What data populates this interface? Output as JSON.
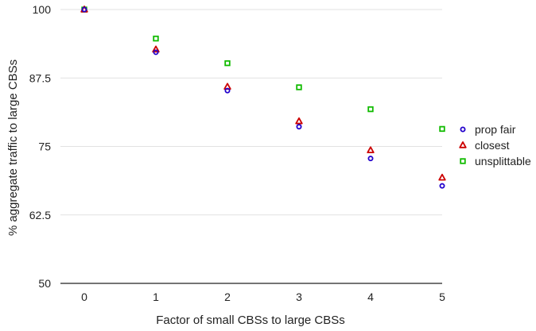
{
  "chart_data": {
    "type": "scatter",
    "xlabel": "Factor of small CBSs to large CBSs",
    "ylabel": "% aggregate traffic to large CBSs",
    "x": [
      0,
      1,
      2,
      3,
      4,
      5
    ],
    "x_ticks": [
      "0",
      "1",
      "2",
      "3",
      "4",
      "5"
    ],
    "y_ticks": [
      "50",
      "62.5",
      "75",
      "87.5",
      "100"
    ],
    "y_tick_values": [
      50,
      62.5,
      75,
      87.5,
      100
    ],
    "ylim": [
      50,
      100
    ],
    "xlim": [
      -0.35,
      5.0
    ],
    "grid": "horizontal",
    "legend_position": "right",
    "series": [
      {
        "name": "prop fair",
        "marker": "circle",
        "color": "#2200cc",
        "values": [
          100,
          92.2,
          85.2,
          78.6,
          72.8,
          67.8
        ]
      },
      {
        "name": "closest",
        "marker": "triangle",
        "color": "#cc0000",
        "values": [
          100,
          92.7,
          85.9,
          79.6,
          74.3,
          69.3
        ]
      },
      {
        "name": "unsplittable",
        "marker": "square",
        "color": "#11bb00",
        "values": [
          100,
          94.7,
          90.2,
          85.8,
          81.8,
          78.2
        ]
      }
    ]
  }
}
